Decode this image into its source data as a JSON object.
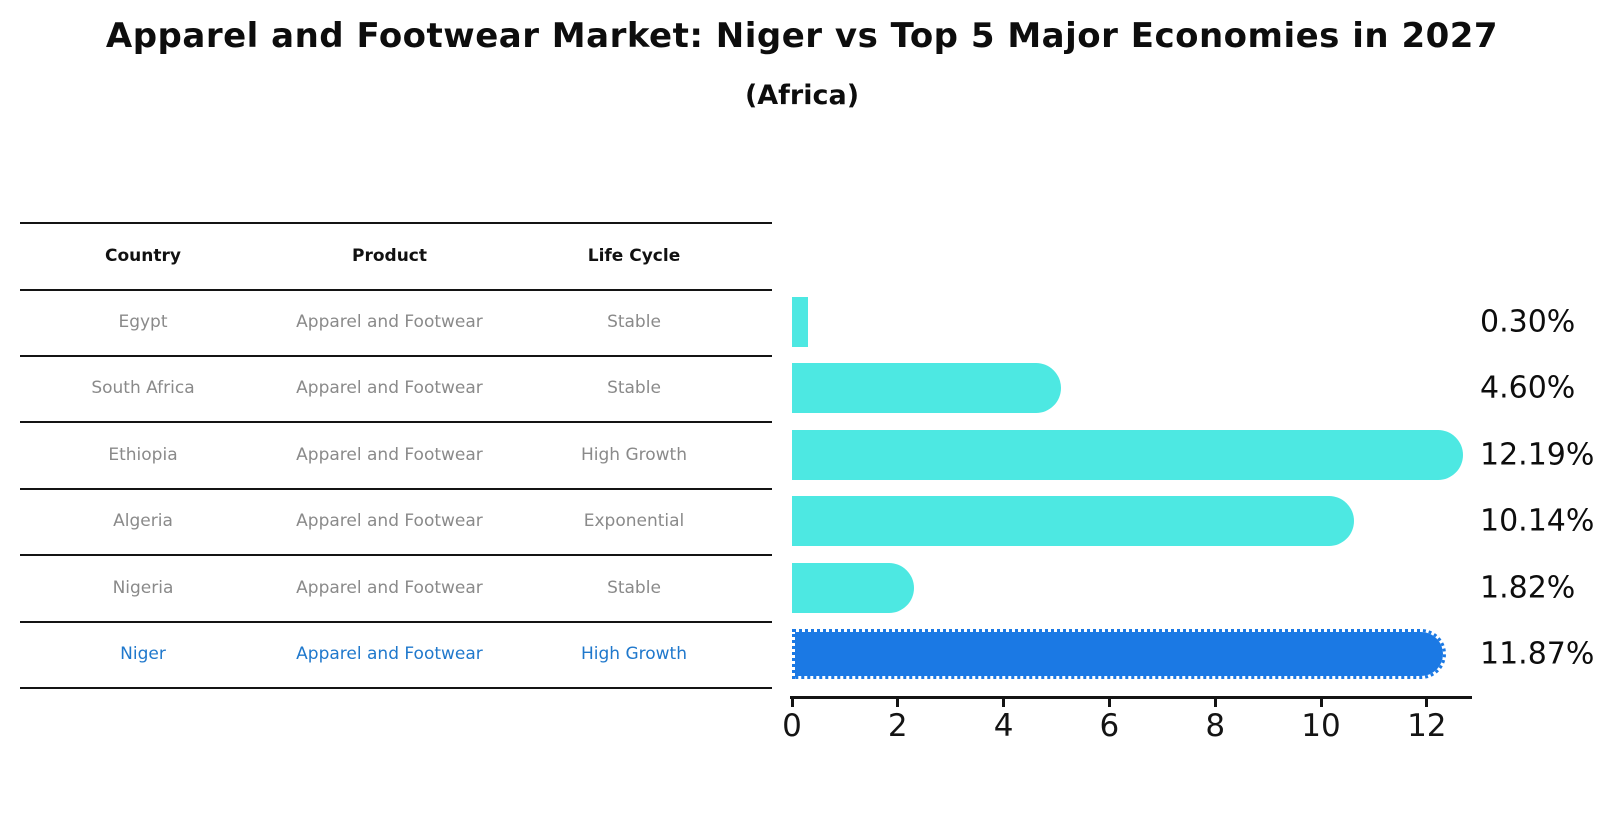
{
  "title": "Apparel and Footwear Market: Niger vs Top 5 Major Economies in 2027",
  "subtitle": "(Africa)",
  "table": {
    "headers": [
      "Country",
      "Product",
      "Life Cycle"
    ],
    "rows": [
      {
        "country": "Egypt",
        "product": "Apparel and Footwear",
        "life_cycle": "Stable",
        "highlight": false
      },
      {
        "country": "South Africa",
        "product": "Apparel and Footwear",
        "life_cycle": "Stable",
        "highlight": false
      },
      {
        "country": "Ethiopia",
        "product": "Apparel and Footwear",
        "life_cycle": "High Growth",
        "highlight": false
      },
      {
        "country": "Algeria",
        "product": "Apparel and Footwear",
        "life_cycle": "Exponential",
        "highlight": false
      },
      {
        "country": "Nigeria",
        "product": "Apparel and Footwear",
        "life_cycle": "Stable",
        "highlight": false
      },
      {
        "country": "Niger",
        "product": "Apparel and Footwear",
        "life_cycle": "High Growth",
        "highlight": true
      }
    ]
  },
  "chart_data": {
    "type": "bar",
    "orientation": "horizontal",
    "categories": [
      "Egypt",
      "South Africa",
      "Ethiopia",
      "Algeria",
      "Nigeria",
      "Niger"
    ],
    "values": [
      0.3,
      4.6,
      12.19,
      10.14,
      1.82,
      11.87
    ],
    "value_labels": [
      "0.30%",
      "4.60%",
      "12.19%",
      "10.14%",
      "1.82%",
      "11.87%"
    ],
    "x_ticks": [
      0,
      2,
      4,
      6,
      8,
      10,
      12
    ],
    "xlim": [
      0,
      12.8
    ],
    "ylabel": "",
    "xlabel": "",
    "grid": false,
    "legend": null,
    "highlight_index": 5,
    "bar_color": "#4DE8E2",
    "highlight_color": "#1B79E4",
    "highlight_text_color": "#1f78cc",
    "label_color": "#0d0d0d"
  }
}
